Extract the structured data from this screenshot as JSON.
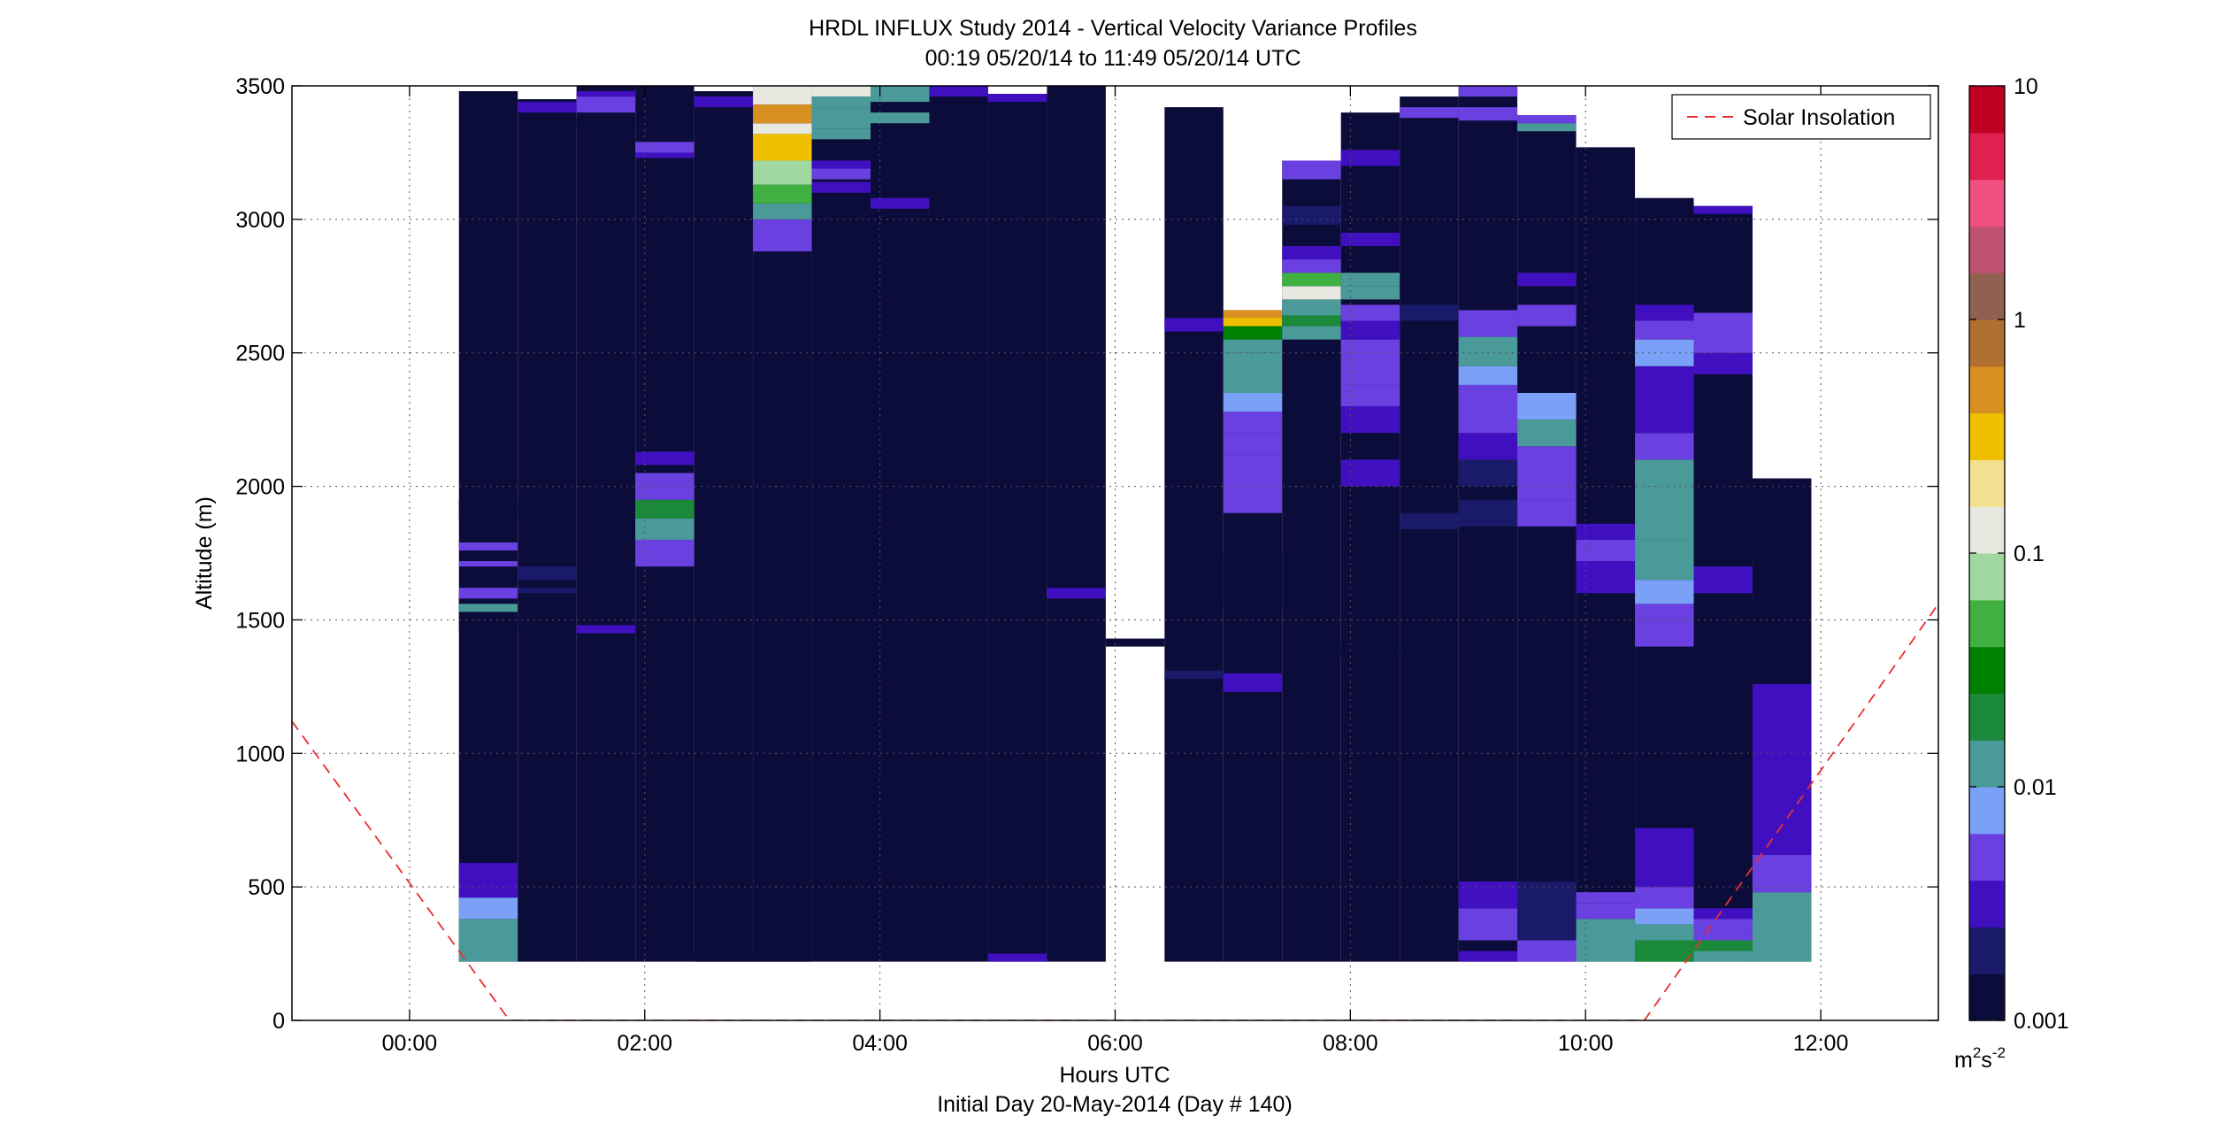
{
  "figure": {
    "title_line1": "HRDL INFLUX Study 2014 - Vertical Velocity Variance Profiles",
    "title_line2": "00:19 05/20/14 to 11:49 05/20/14  UTC",
    "footer": "Initial Day 20-May-2014 (Day # 140)"
  },
  "chart_data": {
    "type": "heatmap",
    "xlabel": "Hours UTC",
    "ylabel": "Altitude (m)",
    "xlim": [
      -1.0,
      13.0
    ],
    "ylim": [
      0,
      3500
    ],
    "xticks": [
      0,
      2,
      4,
      6,
      8,
      10,
      12
    ],
    "xtick_labels": [
      "00:00",
      "02:00",
      "04:00",
      "06:00",
      "08:00",
      "10:00",
      "12:00"
    ],
    "yticks": [
      0,
      500,
      1000,
      1500,
      2000,
      2500,
      3000,
      3500
    ],
    "ytick_labels": [
      "0",
      "500",
      "1000",
      "1500",
      "2000",
      "2500",
      "3000",
      "3500"
    ],
    "grid": true,
    "legend": {
      "placement": "top-right",
      "entries": [
        "Solar Insolation"
      ]
    },
    "colorbar": {
      "scale": "log",
      "range": [
        0.001,
        10
      ],
      "tick_values": [
        0.001,
        0.01,
        0.1,
        1,
        10
      ],
      "tick_labels": [
        "0.001",
        "0.01",
        "0.1",
        "1",
        "10"
      ],
      "unit_label": "m",
      "unit_exp1": "2",
      "unit_mid": "s",
      "unit_exp2": "-2",
      "colors": [
        "#0c0c3a",
        "#1a1a6a",
        "#4010c0",
        "#6a40e0",
        "#7aa0f8",
        "#4a9a9a",
        "#1a8a3a",
        "#008000",
        "#40b040",
        "#a0d8a0",
        "#e8e8e0",
        "#f0e090",
        "#f0c000",
        "#d89020",
        "#b07030",
        "#906050",
        "#c05070",
        "#f05080",
        "#e02050",
        "#c00020"
      ]
    },
    "profiles": [
      {
        "t": 0.42,
        "bottom": 220,
        "top": 3480,
        "layers": [
          [
            220,
            380,
            0.012
          ],
          [
            380,
            460,
            0.008
          ],
          [
            460,
            590,
            0.003
          ],
          [
            1460,
            1600,
            0.001
          ],
          [
            1530,
            1560,
            0.012
          ],
          [
            1580,
            1620,
            0.005
          ],
          [
            1700,
            1720,
            0.005
          ],
          [
            1760,
            1790,
            0.006
          ],
          [
            1880,
            1950,
            0.0015
          ]
        ]
      },
      {
        "t": 0.92,
        "bottom": 220,
        "top": 3450,
        "layers": [
          [
            1600,
            1620,
            0.0025
          ],
          [
            1650,
            1700,
            0.002
          ],
          [
            3400,
            3440,
            0.003
          ]
        ]
      },
      {
        "t": 1.42,
        "bottom": 220,
        "top": 3500,
        "layers": [
          [
            1450,
            1480,
            0.0035
          ],
          [
            3400,
            3460,
            0.006
          ],
          [
            3460,
            3480,
            0.003
          ],
          [
            3340,
            3380,
            0.0015
          ]
        ]
      },
      {
        "t": 1.92,
        "bottom": 220,
        "top": 3500,
        "layers": [
          [
            1700,
            1740,
            0.004
          ],
          [
            1740,
            1800,
            0.006
          ],
          [
            1800,
            1880,
            0.01
          ],
          [
            1880,
            1950,
            0.02
          ],
          [
            1950,
            2020,
            0.005
          ],
          [
            2020,
            2050,
            0.006
          ],
          [
            2080,
            2130,
            0.003
          ],
          [
            3230,
            3260,
            0.003
          ],
          [
            3250,
            3290,
            0.004
          ]
        ]
      },
      {
        "t": 2.42,
        "bottom": 220,
        "top": 3480,
        "layers": [
          [
            220,
            250,
            0.0015
          ],
          [
            3420,
            3460,
            0.003
          ]
        ]
      },
      {
        "t": 2.92,
        "bottom": 220,
        "top": 3500,
        "layers": [
          [
            220,
            250,
            0.0015
          ],
          [
            2880,
            2910,
            0.004
          ],
          [
            2910,
            2960,
            0.006
          ],
          [
            2960,
            3000,
            0.005
          ],
          [
            3000,
            3060,
            0.015
          ],
          [
            3060,
            3130,
            0.04
          ],
          [
            3130,
            3220,
            0.08
          ],
          [
            3220,
            3320,
            0.3
          ],
          [
            3320,
            3360,
            0.15
          ],
          [
            3360,
            3430,
            0.4
          ],
          [
            3430,
            3500,
            0.1
          ]
        ]
      },
      {
        "t": 3.42,
        "bottom": 220,
        "top": 3500,
        "layers": [
          [
            3100,
            3140,
            0.003
          ],
          [
            3150,
            3190,
            0.005
          ],
          [
            3190,
            3220,
            0.003
          ],
          [
            3300,
            3340,
            0.015
          ],
          [
            3340,
            3420,
            0.01
          ],
          [
            3420,
            3460,
            0.012
          ],
          [
            3460,
            3500,
            0.1
          ]
        ]
      },
      {
        "t": 3.92,
        "bottom": 220,
        "top": 3500,
        "layers": [
          [
            3040,
            3080,
            0.003
          ],
          [
            3360,
            3400,
            0.012
          ],
          [
            3440,
            3500,
            0.015
          ]
        ]
      },
      {
        "t": 4.42,
        "bottom": 220,
        "top": 3500,
        "layers": [
          [
            3220,
            3260,
            0.0015
          ],
          [
            3460,
            3500,
            0.003
          ]
        ]
      },
      {
        "t": 4.92,
        "bottom": 220,
        "top": 3470,
        "layers": [
          [
            220,
            250,
            0.003
          ],
          [
            3440,
            3470,
            0.003
          ]
        ]
      },
      {
        "t": 5.42,
        "bottom": 220,
        "top": 3500,
        "layers": [
          [
            1580,
            1620,
            0.003
          ]
        ]
      },
      {
        "t": 5.92,
        "bottom": 1580,
        "top": 1580,
        "layers": [
          [
            1400,
            1430,
            0.0015
          ]
        ]
      },
      {
        "t": 6.42,
        "bottom": 220,
        "top": 3420,
        "layers": [
          [
            1280,
            1310,
            0.002
          ],
          [
            2580,
            2630,
            0.003
          ]
        ]
      },
      {
        "t": 6.92,
        "bottom": 220,
        "top": 2660,
        "layers": [
          [
            1230,
            1300,
            0.003
          ],
          [
            1550,
            1750,
            0.0015
          ],
          [
            1900,
            2050,
            0.004
          ],
          [
            2050,
            2120,
            0.004
          ],
          [
            2120,
            2200,
            0.005
          ],
          [
            2200,
            2280,
            0.006
          ],
          [
            2280,
            2350,
            0.008
          ],
          [
            2350,
            2500,
            0.012
          ],
          [
            2500,
            2550,
            0.015
          ],
          [
            2550,
            2600,
            0.03
          ],
          [
            2600,
            2630,
            0.3
          ],
          [
            2630,
            2660,
            0.6
          ]
        ]
      },
      {
        "t": 7.42,
        "bottom": 220,
        "top": 3220,
        "layers": [
          [
            2550,
            2600,
            0.012
          ],
          [
            2600,
            2640,
            0.02
          ],
          [
            2640,
            2700,
            0.01
          ],
          [
            2700,
            2750,
            0.1
          ],
          [
            2750,
            2800,
            0.04
          ],
          [
            2800,
            2850,
            0.006
          ],
          [
            2850,
            2900,
            0.003
          ],
          [
            2980,
            3050,
            0.002
          ],
          [
            3150,
            3220,
            0.004
          ]
        ]
      },
      {
        "t": 7.92,
        "bottom": 220,
        "top": 3400,
        "layers": [
          [
            1360,
            1410,
            0.0015
          ],
          [
            2000,
            2100,
            0.003
          ],
          [
            2200,
            2300,
            0.003
          ],
          [
            2300,
            2380,
            0.005
          ],
          [
            2380,
            2550,
            0.004
          ],
          [
            2550,
            2620,
            0.003
          ],
          [
            2620,
            2680,
            0.004
          ],
          [
            2700,
            2750,
            0.015
          ],
          [
            2750,
            2800,
            0.01
          ],
          [
            2900,
            2950,
            0.003
          ],
          [
            3200,
            3260,
            0.003
          ]
        ]
      },
      {
        "t": 8.42,
        "bottom": 220,
        "top": 3460,
        "layers": [
          [
            1840,
            1900,
            0.002
          ],
          [
            2620,
            2680,
            0.002
          ],
          [
            3380,
            3420,
            0.004
          ]
        ]
      },
      {
        "t": 8.92,
        "bottom": 220,
        "top": 3500,
        "layers": [
          [
            220,
            260,
            0.003
          ],
          [
            300,
            420,
            0.004
          ],
          [
            420,
            520,
            0.003
          ],
          [
            1850,
            1950,
            0.002
          ],
          [
            2000,
            2100,
            0.002
          ],
          [
            2100,
            2200,
            0.003
          ],
          [
            2200,
            2300,
            0.005
          ],
          [
            2300,
            2380,
            0.006
          ],
          [
            2380,
            2450,
            0.008
          ],
          [
            2450,
            2560,
            0.01
          ],
          [
            2560,
            2620,
            0.006
          ],
          [
            2620,
            2660,
            0.005
          ],
          [
            3370,
            3420,
            0.005
          ],
          [
            3460,
            3500,
            0.006
          ]
        ]
      },
      {
        "t": 9.42,
        "bottom": 220,
        "top": 3390,
        "layers": [
          [
            220,
            300,
            0.004
          ],
          [
            300,
            520,
            0.002
          ],
          [
            1850,
            1950,
            0.004
          ],
          [
            1950,
            2050,
            0.005
          ],
          [
            2050,
            2150,
            0.006
          ],
          [
            2150,
            2250,
            0.012
          ],
          [
            2250,
            2350,
            0.008
          ],
          [
            2600,
            2680,
            0.004
          ],
          [
            2750,
            2800,
            0.003
          ],
          [
            3330,
            3360,
            0.015
          ],
          [
            3360,
            3390,
            0.004
          ]
        ]
      },
      {
        "t": 9.92,
        "bottom": 220,
        "top": 3270,
        "layers": [
          [
            220,
            300,
            0.015
          ],
          [
            300,
            380,
            0.012
          ],
          [
            380,
            440,
            0.004
          ],
          [
            440,
            480,
            0.006
          ],
          [
            1600,
            1720,
            0.003
          ],
          [
            1720,
            1760,
            0.004
          ],
          [
            1760,
            1800,
            0.006
          ],
          [
            1800,
            1860,
            0.003
          ]
        ]
      },
      {
        "t": 10.42,
        "bottom": 220,
        "top": 3080,
        "layers": [
          [
            220,
            300,
            0.02
          ],
          [
            300,
            360,
            0.012
          ],
          [
            360,
            420,
            0.008
          ],
          [
            420,
            500,
            0.004
          ],
          [
            500,
            720,
            0.003
          ],
          [
            1400,
            1500,
            0.004
          ],
          [
            1500,
            1560,
            0.005
          ],
          [
            1560,
            1650,
            0.008
          ],
          [
            1650,
            1800,
            0.01
          ],
          [
            1800,
            2100,
            0.012
          ],
          [
            2100,
            2200,
            0.006
          ],
          [
            2200,
            2450,
            0.003
          ],
          [
            2450,
            2550,
            0.008
          ],
          [
            2550,
            2620,
            0.005
          ],
          [
            2620,
            2680,
            0.003
          ]
        ]
      },
      {
        "t": 10.92,
        "bottom": 220,
        "top": 3050,
        "layers": [
          [
            220,
            260,
            0.012
          ],
          [
            260,
            300,
            0.02
          ],
          [
            300,
            340,
            0.006
          ],
          [
            340,
            380,
            0.005
          ],
          [
            380,
            420,
            0.003
          ],
          [
            1600,
            1700,
            0.003
          ],
          [
            2420,
            2500,
            0.003
          ],
          [
            2500,
            2600,
            0.005
          ],
          [
            2600,
            2650,
            0.006
          ],
          [
            3020,
            3050,
            0.003
          ]
        ]
      },
      {
        "t": 11.42,
        "bottom": 220,
        "top": 2030,
        "layers": [
          [
            220,
            300,
            0.015
          ],
          [
            300,
            480,
            0.012
          ],
          [
            480,
            560,
            0.006
          ],
          [
            560,
            620,
            0.004
          ],
          [
            620,
            900,
            0.003
          ],
          [
            900,
            1260,
            0.003
          ]
        ]
      }
    ],
    "solar_insolation": {
      "name": "Solar Insolation",
      "x": [
        -1.0,
        0.85,
        10.5,
        13.0
      ],
      "y": [
        1120,
        0,
        0,
        1560
      ]
    }
  }
}
